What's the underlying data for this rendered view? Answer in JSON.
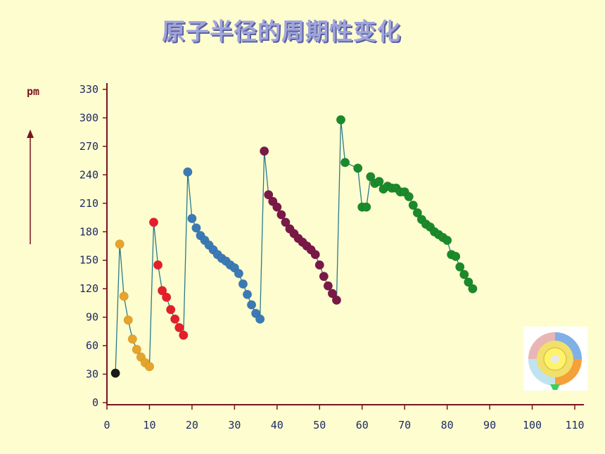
{
  "title": "原子半径的周期性变化",
  "chart_data": {
    "type": "scatter",
    "title": "原子半径的周期性变化",
    "ylabel": "pm",
    "xlabel": "",
    "xlim": [
      0,
      110
    ],
    "ylim": [
      0,
      330
    ],
    "xticks": [
      0,
      10,
      20,
      30,
      40,
      50,
      60,
      70,
      80,
      90,
      100,
      110
    ],
    "yticks": [
      0,
      30,
      60,
      90,
      120,
      150,
      180,
      210,
      240,
      270,
      300,
      330
    ],
    "connect_points": true,
    "line_color": "#2a7a8c",
    "grid": false,
    "series": [
      {
        "color": "#1a1a1a",
        "x": [
          2
        ],
        "y": [
          31
        ]
      },
      {
        "color": "#e6a42b",
        "x": [
          3,
          4,
          5,
          6,
          7,
          8,
          9,
          10
        ],
        "y": [
          167,
          112,
          87,
          67,
          56,
          48,
          42,
          38
        ]
      },
      {
        "color": "#e51e2a",
        "x": [
          11,
          12,
          13,
          14,
          15,
          16,
          17,
          18
        ],
        "y": [
          190,
          145,
          118,
          111,
          98,
          88,
          79,
          71
        ]
      },
      {
        "color": "#3b7ab5",
        "x": [
          19,
          20,
          21,
          22,
          23,
          24,
          25,
          26,
          27,
          28,
          29,
          30,
          31,
          32,
          33,
          34,
          35,
          36
        ],
        "y": [
          243,
          194,
          184,
          176,
          171,
          166,
          161,
          156,
          152,
          149,
          145,
          142,
          136,
          125,
          114,
          103,
          94,
          88
        ]
      },
      {
        "color": "#7a1848",
        "x": [
          37,
          38,
          39,
          40,
          41,
          42,
          43,
          44,
          45,
          46,
          47,
          48,
          49,
          50,
          51,
          52,
          53,
          54
        ],
        "y": [
          265,
          219,
          212,
          206,
          198,
          190,
          183,
          178,
          173,
          169,
          165,
          161,
          156,
          145,
          133,
          123,
          115,
          108
        ]
      },
      {
        "color": "#1a8a2a",
        "x": [
          55,
          56,
          59,
          60,
          61,
          62,
          63,
          64,
          65,
          66,
          67,
          68,
          69,
          70,
          71,
          72,
          73,
          74,
          75,
          76,
          77,
          78,
          79,
          80,
          81,
          82,
          83,
          84,
          85,
          86
        ],
        "y": [
          298,
          253,
          247,
          206,
          206,
          238,
          231,
          233,
          225,
          228,
          226,
          226,
          222,
          222,
          217,
          208,
          200,
          193,
          188,
          185,
          180,
          177,
          174,
          171,
          156,
          154,
          143,
          135,
          127,
          120
        ]
      }
    ]
  },
  "colors": {
    "background": "#fdfdcf",
    "axis": "#7a1420",
    "tick_text": "#1f2a66",
    "unit_text": "#7a1420",
    "title": "#9fa4dc"
  },
  "icons": {
    "decoration": "periodic-table-wheel-icon"
  }
}
